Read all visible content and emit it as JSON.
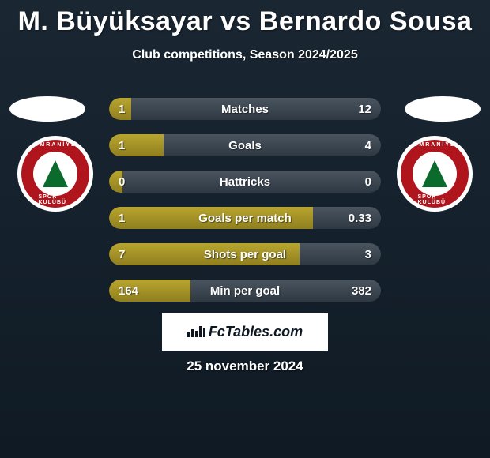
{
  "title": "M. Büyüksayar vs Bernardo Sousa",
  "subtitle": "Club competitions, Season 2024/2025",
  "date": "25 november 2024",
  "brand": "FcTables.com",
  "colors": {
    "bg_top": "#1a2733",
    "bg_bottom": "#0f1a24",
    "bar_left": "#b8a52f",
    "bar_right": "#4a5560",
    "crest_red": "#b0151e",
    "crest_green": "#0a6b2c",
    "text": "#ffffff"
  },
  "crest_left": {
    "top_text": "ÜMRANİYE",
    "bottom_text": "SPOR KULÜBÜ"
  },
  "crest_right": {
    "top_text": "ÜMRANİYE",
    "bottom_text": "SPOR KULÜBÜ"
  },
  "stats": [
    {
      "label": "Matches",
      "left_val": "1",
      "right_val": "12",
      "left_pct": 8,
      "right_pct": 92
    },
    {
      "label": "Goals",
      "left_val": "1",
      "right_val": "4",
      "left_pct": 20,
      "right_pct": 80
    },
    {
      "label": "Hattricks",
      "left_val": "0",
      "right_val": "0",
      "left_pct": 5,
      "right_pct": 95
    },
    {
      "label": "Goals per match",
      "left_val": "1",
      "right_val": "0.33",
      "left_pct": 75,
      "right_pct": 25
    },
    {
      "label": "Shots per goal",
      "left_val": "7",
      "right_val": "3",
      "left_pct": 70,
      "right_pct": 30
    },
    {
      "label": "Min per goal",
      "left_val": "164",
      "right_val": "382",
      "left_pct": 30,
      "right_pct": 70
    }
  ]
}
